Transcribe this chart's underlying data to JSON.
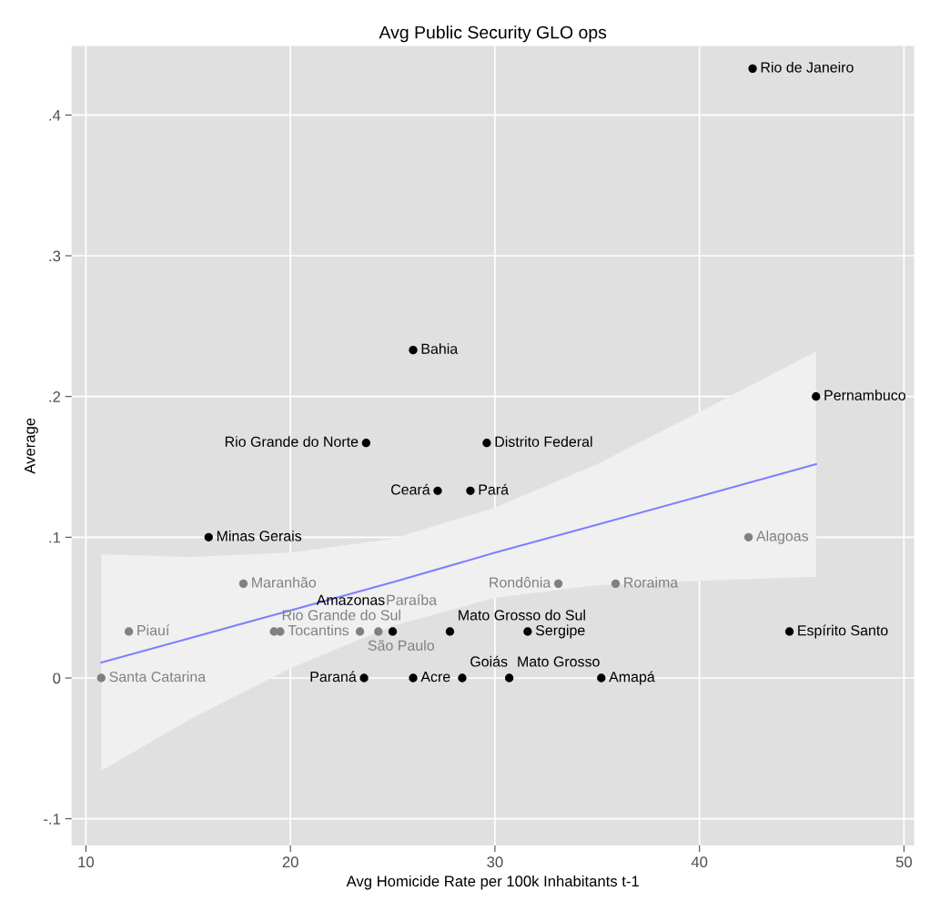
{
  "chart_data": {
    "type": "scatter",
    "title": "Avg Public Security GLO ops",
    "xlabel": "Avg Homicide Rate per 100k Inhabitants t-1",
    "ylabel": "Average",
    "xlim": [
      9.3,
      50.5
    ],
    "xticks": [
      10,
      20,
      30,
      40,
      50
    ],
    "ylim": [
      -0.119,
      0.449
    ],
    "yticks": [
      {
        "value": -0.1,
        "label": "-.1"
      },
      0,
      {
        "value": 0.1,
        "label": ".1"
      },
      {
        "value": 0.2,
        "label": ".2"
      },
      {
        "value": 0.3,
        "label": ".3"
      },
      {
        "value": 0.4,
        "label": ".4"
      }
    ],
    "grid": true,
    "legend": false,
    "marker": "circle",
    "series": [
      {
        "type": "line",
        "marker": "none",
        "color": "#7f7fff",
        "x": [
          10.75,
          15,
          20,
          25,
          30,
          35,
          40,
          45.7
        ],
        "values": [
          0.011,
          0.028,
          0.048,
          0.068,
          0.089,
          0.109,
          0.129,
          0.152
        ],
        "lower": [
          -0.066,
          -0.03,
          0.007,
          0.037,
          0.057,
          0.066,
          0.069,
          0.072
        ],
        "upper": [
          0.088,
          0.086,
          0.089,
          0.099,
          0.121,
          0.152,
          0.189,
          0.232
        ]
      },
      {
        "name": "Rio de Janeiro",
        "color": "#000000",
        "x": [
          42.6
        ],
        "values": [
          0.433
        ]
      },
      {
        "name": "Bahia",
        "color": "#000000",
        "x": [
          26.0
        ],
        "values": [
          0.233
        ]
      },
      {
        "name": "Pernambuco",
        "color": "#000000",
        "x": [
          45.7
        ],
        "values": [
          0.2
        ]
      },
      {
        "name": "Rio Grande do Norte",
        "color": "#000000",
        "x": [
          23.7
        ],
        "values": [
          0.167
        ]
      },
      {
        "name": "Distrito Federal",
        "color": "#000000",
        "x": [
          29.6
        ],
        "values": [
          0.167
        ]
      },
      {
        "name": "Ceará",
        "color": "#000000",
        "x": [
          27.2
        ],
        "values": [
          0.133
        ]
      },
      {
        "name": "Pará",
        "color": "#000000",
        "x": [
          28.8
        ],
        "values": [
          0.133
        ]
      },
      {
        "name": "Minas Gerais",
        "color": "#000000",
        "x": [
          16.0
        ],
        "values": [
          0.1
        ]
      },
      {
        "name": "Alagoas",
        "color": "#808080",
        "x": [
          42.4
        ],
        "values": [
          0.1
        ]
      },
      {
        "name": "Maranhão",
        "color": "#808080",
        "x": [
          17.7
        ],
        "values": [
          0.067
        ]
      },
      {
        "name": "Rondônia",
        "color": "#808080",
        "x": [
          33.1
        ],
        "values": [
          0.067
        ]
      },
      {
        "name": "Roraima",
        "color": "#808080",
        "x": [
          35.9
        ],
        "values": [
          0.067
        ]
      },
      {
        "name": "Piauí",
        "color": "#808080",
        "x": [
          12.1
        ],
        "values": [
          0.033
        ]
      },
      {
        "name": "Rio Grande do Sul",
        "color": "#808080",
        "x": [
          19.2
        ],
        "values": [
          0.033
        ]
      },
      {
        "name": "Tocantins",
        "color": "#808080",
        "x": [
          19.5
        ],
        "values": [
          0.033
        ]
      },
      {
        "name": "São Paulo",
        "color": "#808080",
        "x": [
          23.4
        ],
        "values": [
          0.033
        ]
      },
      {
        "name": "Paraíba",
        "color": "#808080",
        "x": [
          24.3
        ],
        "values": [
          0.033
        ]
      },
      {
        "name": "Amazonas",
        "color": "#000000",
        "x": [
          25.0
        ],
        "values": [
          0.033
        ]
      },
      {
        "name": "Mato Grosso do Sul",
        "color": "#000000",
        "x": [
          27.8
        ],
        "values": [
          0.033
        ]
      },
      {
        "name": "Sergipe",
        "color": "#000000",
        "x": [
          31.6
        ],
        "values": [
          0.033
        ]
      },
      {
        "name": "Espírito Santo",
        "color": "#000000",
        "x": [
          44.4
        ],
        "values": [
          0.033
        ]
      },
      {
        "name": "Santa Catarina",
        "color": "#808080",
        "x": [
          10.75
        ],
        "values": [
          0.0
        ]
      },
      {
        "name": "Paraná",
        "color": "#000000",
        "x": [
          23.6
        ],
        "values": [
          0.0
        ]
      },
      {
        "name": "Acre",
        "color": "#000000",
        "x": [
          26.0
        ],
        "values": [
          0.0
        ]
      },
      {
        "name": "Goiás",
        "color": "#000000",
        "x": [
          28.4
        ],
        "values": [
          0.0
        ]
      },
      {
        "name": "Mato Grosso",
        "color": "#000000",
        "x": [
          30.7
        ],
        "values": [
          0.0
        ]
      },
      {
        "name": "Amapá",
        "color": "#000000",
        "x": [
          35.2
        ],
        "values": [
          0.0
        ]
      }
    ]
  }
}
